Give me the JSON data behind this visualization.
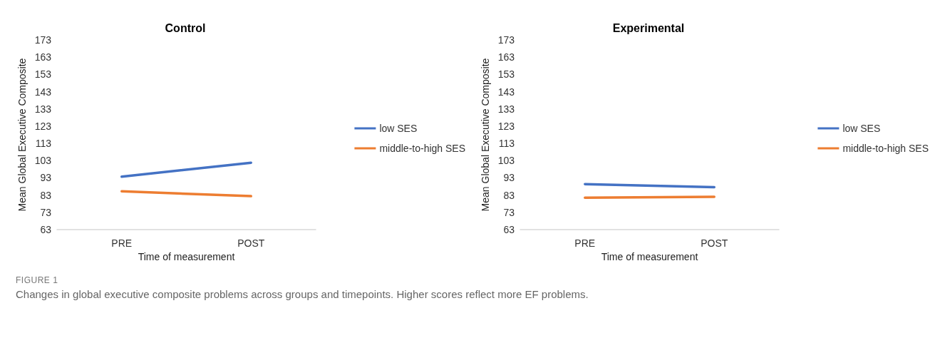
{
  "chart_data": [
    {
      "type": "line",
      "title": "Control",
      "xlabel": "Time of measurement",
      "ylabel": "Mean Global Executive Composite",
      "categories": [
        "PRE",
        "POST"
      ],
      "series": [
        {
          "name": "low SES",
          "color": "#4472c4",
          "values": [
            93.7,
            101.8
          ]
        },
        {
          "name": "middle-to-high SES",
          "color": "#ed7d31",
          "values": [
            85.2,
            82.4
          ]
        }
      ],
      "ylim": [
        63,
        173
      ],
      "yticks": [
        63,
        73,
        83,
        93,
        103,
        113,
        123,
        133,
        143,
        153,
        163,
        173
      ],
      "grid": false,
      "legend": "right",
      "marker": "none",
      "line_style": "solid",
      "annotations": [
        "FIGURE 1",
        "Changes in global executive composite problems across groups and timepoints. Higher scores reflect more EF problems."
      ]
    },
    {
      "type": "line",
      "title": "Experimental",
      "xlabel": "Time of measurement",
      "ylabel": "Mean Global Executive Composite",
      "categories": [
        "PRE",
        "POST"
      ],
      "series": [
        {
          "name": "low SES",
          "color": "#4472c4",
          "values": [
            89.4,
            87.6
          ]
        },
        {
          "name": "middle-to-high SES",
          "color": "#ed7d31",
          "values": [
            81.5,
            82.0
          ]
        }
      ],
      "ylim": [
        63,
        173
      ],
      "yticks": [
        63,
        73,
        83,
        93,
        103,
        113,
        123,
        133,
        143,
        153,
        163,
        173
      ],
      "grid": false,
      "legend": "right",
      "marker": "none",
      "line_style": "solid"
    }
  ]
}
